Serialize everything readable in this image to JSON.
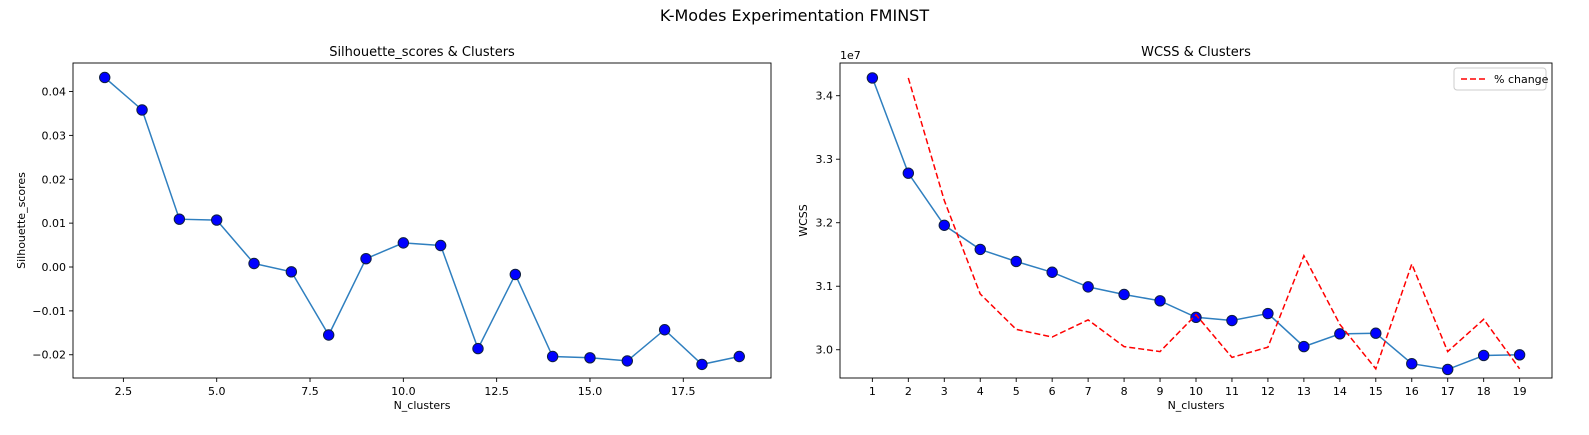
{
  "figure": {
    "suptitle": "K-Modes Experimentation FMINST"
  },
  "chart_data": [
    {
      "type": "line",
      "title": "Silhouette_scores & Clusters",
      "xlabel": "N_clusters",
      "ylabel": "Silhouette_scores",
      "xlim": [
        1.15,
        19.85
      ],
      "ylim": [
        -0.0253,
        0.0465
      ],
      "xticks": [
        2.5,
        5.0,
        7.5,
        10.0,
        12.5,
        15.0,
        17.5
      ],
      "xtick_labels": [
        "2.5",
        "5.0",
        "7.5",
        "10.0",
        "12.5",
        "15.0",
        "17.5"
      ],
      "yticks": [
        -0.02,
        -0.01,
        0.0,
        0.01,
        0.02,
        0.03,
        0.04
      ],
      "ytick_labels": [
        "−0.02",
        "−0.01",
        "0.00",
        "0.01",
        "0.02",
        "0.03",
        "0.04"
      ],
      "grid": false,
      "series": [
        {
          "line_color": "#2f7fbf",
          "marker_color": "#0000ff",
          "x": [
            2,
            3,
            4,
            5,
            6,
            7,
            8,
            9,
            10,
            11,
            12,
            13,
            14,
            15,
            16,
            17,
            18,
            19
          ],
          "y": [
            0.0432,
            0.0358,
            0.0109,
            0.0107,
            0.0008,
            -0.0011,
            -0.0155,
            0.0019,
            0.0055,
            0.0049,
            -0.0186,
            -0.0017,
            -0.0204,
            -0.0207,
            -0.0214,
            -0.0143,
            -0.0222,
            -0.0204
          ]
        }
      ]
    },
    {
      "type": "line",
      "title": "WCSS & Clusters",
      "xlabel": "N_clusters",
      "ylabel": "WCSS",
      "y_offset_label": "1e7",
      "xlim": [
        0.1,
        19.9
      ],
      "ylim": [
        2.9555,
        3.4515
      ],
      "xticks": [
        1,
        2,
        3,
        4,
        5,
        6,
        7,
        8,
        9,
        10,
        11,
        12,
        13,
        14,
        15,
        16,
        17,
        18,
        19
      ],
      "xtick_labels": [
        "1",
        "2",
        "3",
        "4",
        "5",
        "6",
        "7",
        "8",
        "9",
        "10",
        "11",
        "12",
        "13",
        "14",
        "15",
        "16",
        "17",
        "18",
        "19"
      ],
      "yticks": [
        3.0,
        3.1,
        3.2,
        3.3,
        3.4
      ],
      "ytick_labels": [
        "3.0",
        "3.1",
        "3.2",
        "3.3",
        "3.4"
      ],
      "grid": false,
      "legend": {
        "placement": "top-right",
        "entries": [
          "% change"
        ]
      },
      "series": [
        {
          "line_color": "#2f7fbf",
          "marker_color": "#0000ff",
          "x": [
            1,
            2,
            3,
            4,
            5,
            6,
            7,
            8,
            9,
            10,
            11,
            12,
            13,
            14,
            15,
            16,
            17,
            18,
            19
          ],
          "y": [
            3.428,
            3.278,
            3.196,
            3.158,
            3.139,
            3.122,
            3.099,
            3.087,
            3.077,
            3.051,
            3.046,
            3.057,
            3.005,
            3.025,
            3.026,
            2.978,
            2.969,
            2.991,
            2.992
          ]
        },
        {
          "name": "% change",
          "style": "dashed",
          "line_color": "#ff0000",
          "x": [
            2,
            3,
            4,
            5,
            6,
            7,
            8,
            9,
            10,
            11,
            12,
            13,
            14,
            15,
            16,
            17,
            18,
            19
          ],
          "y": [
            3.428,
            3.235,
            3.088,
            3.032,
            3.02,
            3.047,
            3.005,
            2.997,
            3.055,
            2.988,
            3.004,
            3.148,
            3.04,
            2.97,
            3.135,
            2.997,
            3.048,
            2.97
          ]
        }
      ]
    }
  ]
}
